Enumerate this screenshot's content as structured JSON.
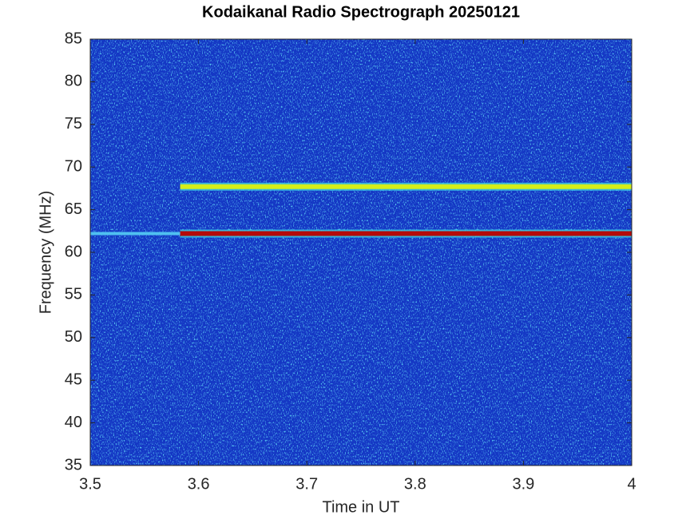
{
  "chart_data": {
    "type": "spectrogram",
    "title": "Kodaikanal Radio Spectrograph  20250121",
    "x_label": "Time in UT",
    "y_label": "Frequency (MHz)",
    "xlim": [
      3.5,
      4
    ],
    "ylim": [
      35,
      85
    ],
    "xticks": [
      3.5,
      3.6,
      3.7,
      3.8,
      3.9,
      4
    ],
    "yticks": [
      35,
      40,
      45,
      50,
      55,
      60,
      65,
      70,
      75,
      80,
      85
    ],
    "background_color": "#1437c4",
    "bands": [
      {
        "freq": 67.7,
        "start": 3.583,
        "end": 4,
        "color": "#d4ee1a"
      },
      {
        "freq": 62.2,
        "start": 3.583,
        "end": 4,
        "color": "#b40a0a"
      },
      {
        "freq": 62.2,
        "start": 3.5,
        "end": 3.583,
        "color": "#4fc0f0"
      }
    ]
  }
}
